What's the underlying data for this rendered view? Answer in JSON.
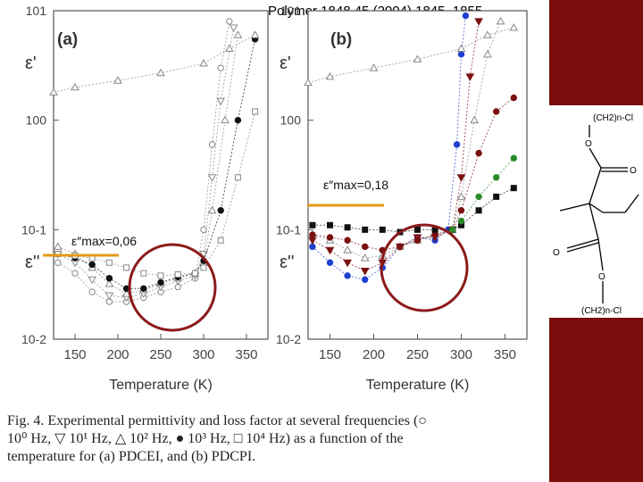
{
  "header": {
    "title": "Polymer 1848 45 (2004) 1845–1855"
  },
  "annotations": {
    "max_a_label": "ε″max=0,06",
    "max_b_label": "ε″max=0,18"
  },
  "chart_data": [
    {
      "type": "scatter",
      "panel_label": "(a)",
      "xlabel": "Temperature (K)",
      "ylabel_top": "ε'",
      "ylabel_bottom": "ε''",
      "x_ticks": [
        150,
        200,
        250,
        300,
        350
      ],
      "y_ticks": [
        "10-2",
        "10-1",
        "100",
        "101"
      ],
      "xlim": [
        125,
        375
      ],
      "ylim": [
        0.01,
        10
      ],
      "yscale": "log",
      "series": [
        {
          "name": "100 Hz",
          "marker": "circle-open",
          "color": "#888888",
          "x": [
            130,
            150,
            170,
            190,
            210,
            230,
            250,
            270,
            290,
            300,
            310,
            320,
            330
          ],
          "y": [
            0.05,
            0.04,
            0.027,
            0.022,
            0.022,
            0.024,
            0.027,
            0.03,
            0.036,
            0.1,
            0.6,
            3,
            8
          ]
        },
        {
          "name": "101 Hz",
          "marker": "triangle-down-open",
          "color": "#888888",
          "x": [
            130,
            150,
            170,
            190,
            210,
            230,
            250,
            270,
            290,
            300,
            310,
            320,
            335
          ],
          "y": [
            0.06,
            0.05,
            0.035,
            0.025,
            0.024,
            0.026,
            0.03,
            0.034,
            0.038,
            0.06,
            0.3,
            1.5,
            7
          ]
        },
        {
          "name": "102 Hz",
          "marker": "triangle-up-open",
          "color": "#888888",
          "x": [
            130,
            150,
            170,
            190,
            210,
            230,
            250,
            270,
            290,
            300,
            310,
            325,
            340
          ],
          "y": [
            0.07,
            0.06,
            0.045,
            0.032,
            0.026,
            0.028,
            0.032,
            0.036,
            0.04,
            0.05,
            0.15,
            1,
            6
          ]
        },
        {
          "name": "103 Hz",
          "marker": "circle-filled",
          "color": "#111111",
          "x": [
            130,
            150,
            170,
            190,
            210,
            230,
            250,
            270,
            290,
            300,
            320,
            340,
            360
          ],
          "y": [
            0.06,
            0.055,
            0.048,
            0.036,
            0.029,
            0.029,
            0.033,
            0.037,
            0.04,
            0.052,
            0.15,
            1,
            5.5
          ]
        },
        {
          "name": "104 Hz",
          "marker": "square-open",
          "color": "#888888",
          "x": [
            130,
            150,
            170,
            190,
            210,
            230,
            250,
            270,
            290,
            300,
            320,
            340,
            360
          ],
          "y": [
            0.06,
            0.058,
            0.055,
            0.05,
            0.045,
            0.04,
            0.038,
            0.039,
            0.04,
            0.045,
            0.08,
            0.3,
            1.2
          ]
        },
        {
          "name": "ε' baseline",
          "marker": "triangle-up-open",
          "color": "#888888",
          "x": [
            125,
            150,
            200,
            250,
            300,
            330,
            360
          ],
          "y": [
            1.8,
            2.0,
            2.3,
            2.7,
            3.3,
            4.5,
            6
          ]
        }
      ]
    },
    {
      "type": "scatter",
      "panel_label": "(b)",
      "xlabel": "Temperature (K)",
      "ylabel_top": "ε'",
      "ylabel_bottom": "ε''",
      "x_ticks": [
        150,
        200,
        250,
        300,
        350
      ],
      "y_ticks": [
        "10-2",
        "10-1",
        "100",
        "101"
      ],
      "xlim": [
        125,
        375
      ],
      "ylim": [
        0.01,
        10
      ],
      "yscale": "log",
      "series": [
        {
          "name": "100 Hz",
          "marker": "circle",
          "color": "#1f3fd0",
          "x": [
            130,
            150,
            170,
            190,
            210,
            230,
            250,
            270,
            285,
            295,
            300,
            305
          ],
          "y": [
            0.07,
            0.05,
            0.038,
            0.035,
            0.045,
            0.07,
            0.085,
            0.08,
            0.1,
            0.6,
            4,
            9
          ]
        },
        {
          "name": "101 Hz",
          "marker": "triangle-down",
          "color": "#7a1010",
          "x": [
            130,
            150,
            170,
            190,
            210,
            230,
            250,
            270,
            290,
            300,
            310,
            320
          ],
          "y": [
            0.08,
            0.065,
            0.05,
            0.042,
            0.05,
            0.07,
            0.085,
            0.085,
            0.1,
            0.3,
            2.5,
            8
          ]
        },
        {
          "name": "102 Hz",
          "marker": "triangle-up-open",
          "color": "#888888",
          "x": [
            130,
            150,
            170,
            190,
            210,
            230,
            250,
            270,
            290,
            300,
            315,
            330,
            345
          ],
          "y": [
            0.09,
            0.08,
            0.065,
            0.055,
            0.058,
            0.07,
            0.08,
            0.09,
            0.1,
            0.2,
            1,
            4,
            8
          ]
        },
        {
          "name": "103 Hz",
          "marker": "circle-filled",
          "color": "#7a1010",
          "x": [
            130,
            150,
            170,
            190,
            210,
            230,
            250,
            270,
            290,
            300,
            320,
            340,
            360
          ],
          "y": [
            0.09,
            0.085,
            0.08,
            0.07,
            0.065,
            0.07,
            0.08,
            0.09,
            0.1,
            0.15,
            0.5,
            1.2,
            1.6
          ]
        },
        {
          "name": "104 Hz",
          "marker": "square-filled",
          "color": "#111111",
          "x": [
            130,
            150,
            170,
            190,
            210,
            230,
            250,
            270,
            290,
            300,
            320,
            340,
            360
          ],
          "y": [
            0.11,
            0.11,
            0.105,
            0.1,
            0.1,
            0.095,
            0.1,
            0.1,
            0.1,
            0.11,
            0.15,
            0.2,
            0.24
          ]
        },
        {
          "name": "green series",
          "marker": "circle-filled",
          "color": "#2a8a2a",
          "x": [
            290,
            300,
            320,
            340,
            360
          ],
          "y": [
            0.1,
            0.12,
            0.2,
            0.3,
            0.45
          ]
        },
        {
          "name": "ε' baseline",
          "marker": "triangle-up-open",
          "color": "#888888",
          "x": [
            125,
            150,
            200,
            250,
            300,
            330,
            360
          ],
          "y": [
            2.2,
            2.5,
            3.0,
            3.6,
            4.5,
            6,
            7
          ]
        }
      ]
    }
  ],
  "structure": {
    "labels": [
      "(CH2)n-Cl",
      "O",
      "O",
      "O",
      "O",
      "(CH2)n-Cl"
    ]
  },
  "caption": {
    "line1": "Fig. 4.  Experimental permittivity and loss factor at several frequencies (○",
    "line2": "10⁰ Hz, ▽ 10¹ Hz, △ 10² Hz, ● 10³ Hz, □ 10⁴ Hz) as a function of the",
    "line3": "temperature for (a) PDCEI, and (b) PDCPI."
  },
  "colors": {
    "maroon": "#7b0d0d",
    "orange": "#e39b1a",
    "circle": "#8b1a1a"
  }
}
